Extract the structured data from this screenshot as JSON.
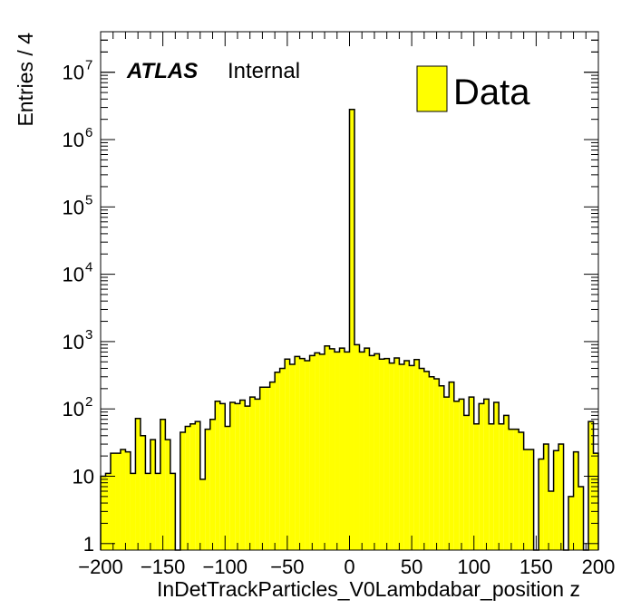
{
  "chart_data": {
    "type": "bar",
    "xlabel": "InDetTrackParticles_V0Lambdabar_position z",
    "ylabel": "Entries / 4",
    "xlim": [
      -200,
      200
    ],
    "ylim": [
      0.8,
      40000000
    ],
    "yscale": "log",
    "bin_width": 4,
    "x_ticks": [
      -200,
      -150,
      -100,
      -50,
      0,
      50,
      100,
      150,
      200
    ],
    "x_tick_labels": [
      "−200",
      "−150",
      "−100",
      "−50",
      "0",
      "50",
      "100",
      "150",
      "200"
    ],
    "y_ticks": [
      1,
      10,
      100,
      1000,
      10000,
      100000,
      1000000,
      10000000
    ],
    "y_tick_labels": [
      {
        "base": "1",
        "exp": ""
      },
      {
        "base": "10",
        "exp": ""
      },
      {
        "base": "10",
        "exp": "2"
      },
      {
        "base": "10",
        "exp": "3"
      },
      {
        "base": "10",
        "exp": "4"
      },
      {
        "base": "10",
        "exp": "5"
      },
      {
        "base": "10",
        "exp": "6"
      },
      {
        "base": "10",
        "exp": "7"
      }
    ],
    "fill_color": "#ffff00",
    "line_color": "#000000",
    "series": [
      {
        "name": "Data",
        "x_low_edges": [
          -200,
          -196,
          -192,
          -188,
          -184,
          -180,
          -176,
          -172,
          -168,
          -164,
          -160,
          -156,
          -152,
          -148,
          -144,
          -140,
          -136,
          -132,
          -128,
          -124,
          -120,
          -116,
          -112,
          -108,
          -104,
          -100,
          -96,
          -92,
          -88,
          -84,
          -80,
          -76,
          -72,
          -68,
          -64,
          -60,
          -56,
          -52,
          -48,
          -44,
          -40,
          -36,
          -32,
          -28,
          -24,
          -20,
          -16,
          -12,
          -8,
          -4,
          0,
          4,
          8,
          12,
          16,
          20,
          24,
          28,
          32,
          36,
          40,
          44,
          48,
          52,
          56,
          60,
          64,
          68,
          72,
          76,
          80,
          84,
          88,
          92,
          96,
          100,
          104,
          108,
          112,
          116,
          120,
          124,
          128,
          132,
          136,
          140,
          144,
          148,
          152,
          156,
          160,
          164,
          168,
          172,
          176,
          180,
          184,
          188,
          192,
          196
        ],
        "values": [
          10,
          11,
          22,
          22,
          25,
          23,
          11,
          72,
          40,
          11,
          35,
          11,
          70,
          35,
          11,
          0,
          45,
          55,
          60,
          65,
          9,
          50,
          70,
          130,
          120,
          55,
          125,
          120,
          135,
          110,
          150,
          140,
          210,
          210,
          250,
          350,
          400,
          550,
          460,
          600,
          560,
          520,
          620,
          680,
          650,
          860,
          780,
          700,
          800,
          700,
          2800000,
          900,
          700,
          800,
          620,
          660,
          550,
          560,
          480,
          570,
          460,
          520,
          440,
          540,
          400,
          360,
          300,
          280,
          220,
          150,
          250,
          130,
          140,
          80,
          150,
          60,
          120,
          140,
          60,
          125,
          60,
          80,
          50,
          50,
          45,
          25,
          25,
          0,
          18,
          30,
          6,
          24,
          30,
          0,
          5,
          23,
          7,
          0,
          65,
          22
        ]
      }
    ],
    "legend": {
      "entries": [
        "Data"
      ],
      "position": "top-right"
    },
    "annotations": {
      "atlas": "ATLAS",
      "status": "Internal"
    }
  }
}
